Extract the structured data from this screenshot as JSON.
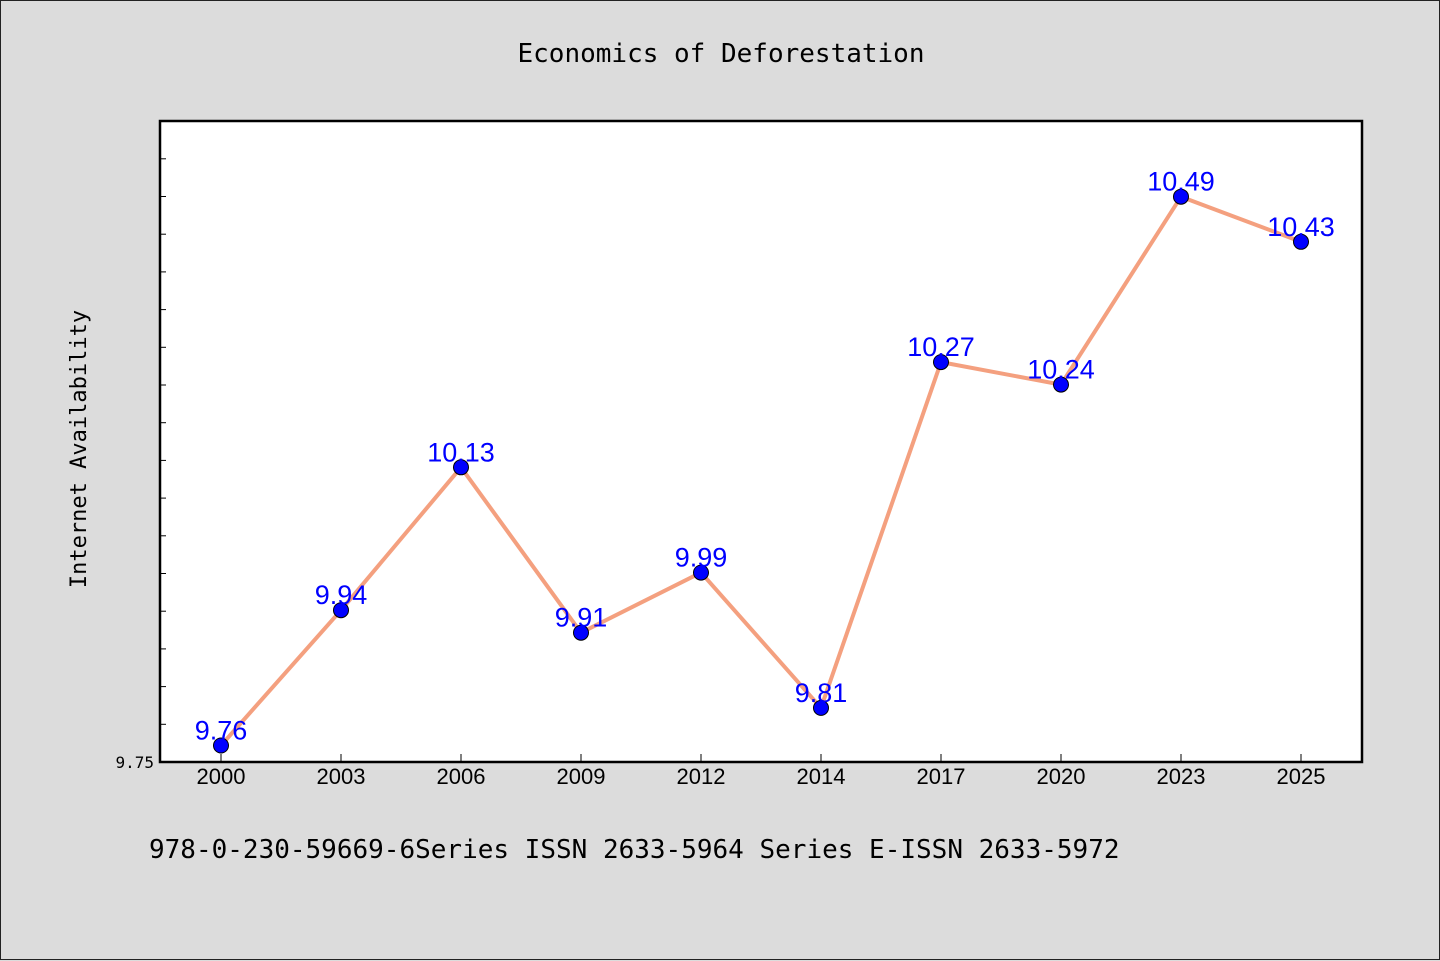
{
  "chart_data": {
    "type": "line",
    "title": "Economics of Deforestation",
    "xlabel": "",
    "ylabel": "Internet Availability",
    "categories": [
      "2000",
      "2003",
      "2006",
      "2009",
      "2012",
      "2014",
      "2017",
      "2020",
      "2023",
      "2025"
    ],
    "series": [
      {
        "values": [
          9.76,
          9.94,
          10.13,
          9.91,
          9.99,
          9.81,
          10.27,
          10.24,
          10.49,
          10.43
        ],
        "line_color": "#f4a07f",
        "marker_color": "#0000ff"
      }
    ],
    "data_labels": [
      "9.76",
      "9.94",
      "10.13",
      "9.91",
      "9.99",
      "9.81",
      "10.27",
      "10.24",
      "10.49",
      "10.43"
    ],
    "y_tick_labels": [
      "9.75"
    ],
    "ylim": [
      9.75,
      10.6
    ],
    "grid": false,
    "legend": "none"
  },
  "footer": {
    "text": "978-0-230-59669-6Series ISSN 2633-5964 Series E-ISSN 2633-5972"
  }
}
